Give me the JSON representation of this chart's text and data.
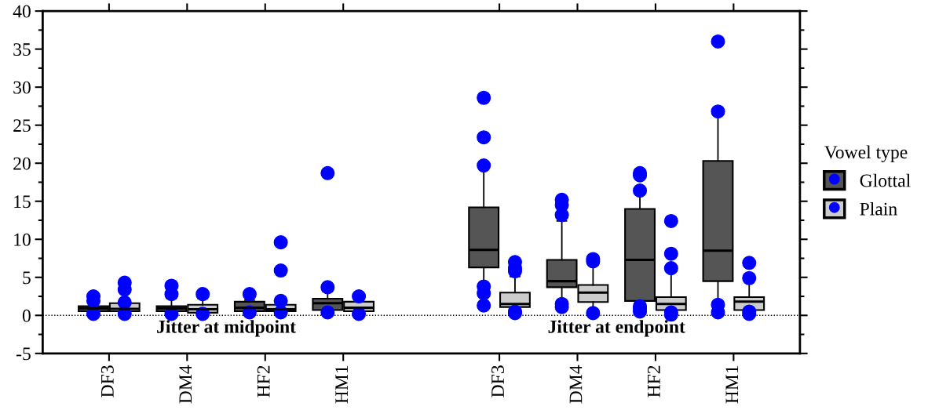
{
  "chart_data": {
    "type": "box",
    "categories": [
      "DF3",
      "DM4",
      "HF2",
      "HM1",
      "DF3",
      "DM4",
      "HF2",
      "HM1"
    ],
    "ylim": [
      -5,
      40
    ],
    "yticks": [
      -5,
      0,
      5,
      10,
      15,
      20,
      25,
      30,
      35,
      40
    ],
    "legend": "right",
    "legend_title": "Vowel type",
    "annotations": [
      "Jitter at midpoint",
      "Jitter at endpoint"
    ],
    "ref_lines": [
      {
        "axis": "y",
        "value": 0,
        "color": "#000000",
        "line_style": "dotted"
      }
    ],
    "series": [
      {
        "name": "Glottal",
        "color": "#555555",
        "boxes": [
          {
            "low": 0.5,
            "q1": 0.55,
            "median": 0.9,
            "q3": 1.2,
            "high": 1.7,
            "outliers": [
              0.2,
              1.9,
              2.5
            ]
          },
          {
            "low": 0.5,
            "q1": 0.55,
            "median": 0.9,
            "q3": 1.2,
            "high": 2.2,
            "outliers": [
              0.2,
              2.8,
              3.9
            ]
          },
          {
            "low": 0.5,
            "q1": 0.55,
            "median": 1.0,
            "q3": 1.8,
            "high": 2.0,
            "outliers": [
              0.4,
              2.8
            ]
          },
          {
            "low": 0.7,
            "q1": 0.7,
            "median": 1.6,
            "q3": 2.2,
            "high": 3.1,
            "outliers": [
              0.4,
              3.7,
              18.7
            ]
          },
          {
            "low": 3.9,
            "q1": 6.3,
            "median": 8.6,
            "q3": 14.2,
            "high": 19.5,
            "outliers": [
              1.3,
              2.9,
              3.8,
              19.7,
              23.4,
              28.6
            ]
          },
          {
            "low": 1.9,
            "q1": 3.7,
            "median": 4.5,
            "q3": 7.3,
            "high": 12.4,
            "outliers": [
              1.1,
              1.5,
              13.2,
              14.5,
              15.2
            ]
          },
          {
            "low": 1.9,
            "q1": 1.9,
            "median": 7.3,
            "q3": 14.0,
            "high": 16.3,
            "outliers": [
              0.5,
              0.9,
              1.2,
              16.4,
              18.4,
              18.7
            ]
          },
          {
            "low": 1.5,
            "q1": 4.5,
            "median": 8.5,
            "q3": 20.3,
            "high": 26.6,
            "outliers": [
              0.4,
              1.4,
              26.8,
              36.0
            ]
          }
        ]
      },
      {
        "name": "Plain",
        "color": "#cccccc",
        "boxes": [
          {
            "low": 0.5,
            "q1": 0.55,
            "median": 0.85,
            "q3": 1.6,
            "high": 1.8,
            "outliers": [
              0.2,
              1.7,
              3.4,
              4.3
            ]
          },
          {
            "low": 0.35,
            "q1": 0.35,
            "median": 0.8,
            "q3": 1.4,
            "high": 2.2,
            "outliers": [
              0.2,
              2.8
            ]
          },
          {
            "low": 0.55,
            "q1": 0.55,
            "median": 0.8,
            "q3": 1.4,
            "high": 1.9,
            "outliers": [
              0.4,
              1.9,
              5.9,
              9.6
            ]
          },
          {
            "low": 0.55,
            "q1": 0.55,
            "median": 1.0,
            "q3": 1.8,
            "high": 2.3,
            "outliers": [
              0.2,
              2.5
            ]
          },
          {
            "low": 0.7,
            "q1": 1.1,
            "median": 1.5,
            "q3": 3.0,
            "high": 5.1,
            "outliers": [
              0.3,
              0.5,
              5.8,
              6.2,
              7.0
            ]
          },
          {
            "low": 0.4,
            "q1": 1.75,
            "median": 3.0,
            "q3": 4.0,
            "high": 6.9,
            "outliers": [
              0.3,
              7.1,
              7.4
            ]
          },
          {
            "low": 0.5,
            "q1": 0.7,
            "median": 1.5,
            "q3": 2.4,
            "high": 6.1,
            "outliers": [
              0.1,
              0.4,
              6.2,
              8.1,
              12.4
            ]
          },
          {
            "low": 0.5,
            "q1": 0.7,
            "median": 1.8,
            "q3": 2.4,
            "high": 4.5,
            "outliers": [
              0.2,
              0.5,
              4.9,
              6.9
            ]
          }
        ]
      }
    ]
  }
}
